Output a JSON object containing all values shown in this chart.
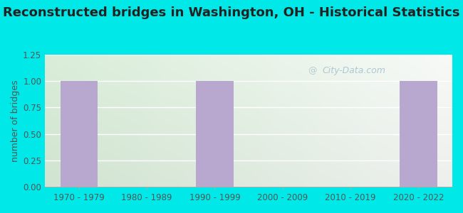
{
  "title": "Reconstructed bridges in Washington, OH - Historical Statistics",
  "categories": [
    "1970 - 1979",
    "1980 - 1989",
    "1990 - 1999",
    "2000 - 2009",
    "2010 - 2019",
    "2020 - 2022"
  ],
  "values": [
    1,
    0,
    1,
    0,
    0,
    1
  ],
  "bar_color": "#b8a8d0",
  "ylabel": "number of bridges",
  "ylim": [
    0,
    1.25
  ],
  "yticks": [
    0,
    0.25,
    0.5,
    0.75,
    1,
    1.25
  ],
  "background_outer": "#00e8e8",
  "background_plot_topleft": "#d8edd8",
  "background_plot_topright": "#edf5f5",
  "background_plot_bottom": "#e8f5e8",
  "title_fontsize": 13,
  "ylabel_fontsize": 9,
  "tick_fontsize": 8.5,
  "watermark_text": "City-Data.com"
}
